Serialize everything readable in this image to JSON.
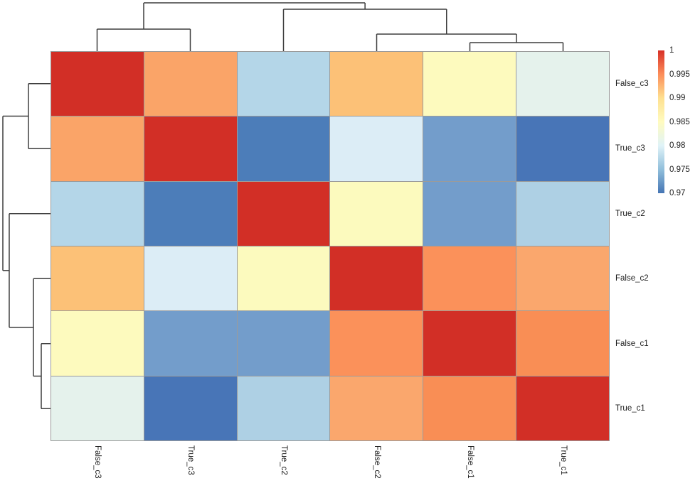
{
  "figure": {
    "kind": "clustered correlation heatmap",
    "background": "#ffffff"
  },
  "chart_data": {
    "type": "heatmap",
    "title": "",
    "rows": [
      "False_c3",
      "True_c3",
      "True_c2",
      "False_c2",
      "False_c1",
      "True_c1"
    ],
    "columns": [
      "False_c3",
      "True_c3",
      "True_c2",
      "False_c2",
      "False_c1",
      "True_c1"
    ],
    "values": [
      [
        1.0,
        0.993,
        0.977,
        0.992,
        0.985,
        0.982
      ],
      [
        0.993,
        1.0,
        0.971,
        0.98,
        0.973,
        0.97
      ],
      [
        0.977,
        0.971,
        1.0,
        0.985,
        0.973,
        0.977
      ],
      [
        0.992,
        0.98,
        0.985,
        1.0,
        0.995,
        0.993
      ],
      [
        0.985,
        0.973,
        0.973,
        0.995,
        1.0,
        0.995
      ],
      [
        0.982,
        0.97,
        0.977,
        0.993,
        0.995,
        1.0
      ]
    ],
    "cell_colors": [
      [
        "#d22f26",
        "#faa468",
        "#b4d6e8",
        "#fcc177",
        "#fdfabe",
        "#e5f2ec"
      ],
      [
        "#faa468",
        "#d22f26",
        "#4c7db9",
        "#dcedf6",
        "#739dcb",
        "#4875b7"
      ],
      [
        "#b4d6e8",
        "#4c7db9",
        "#d22f26",
        "#fcfabe",
        "#739dcb",
        "#aed0e4"
      ],
      [
        "#fcc177",
        "#dcedf6",
        "#fcfabe",
        "#d22f26",
        "#fb915a",
        "#faa76d"
      ],
      [
        "#fdfabe",
        "#739dcb",
        "#739dcb",
        "#fb915a",
        "#d22f26",
        "#f98e55"
      ],
      [
        "#e5f2ec",
        "#4875b7",
        "#aed0e4",
        "#faa76d",
        "#f98e55",
        "#d22f26"
      ]
    ],
    "grid_line_color": "#9b9b9b",
    "dendrogram_color": "#3d3d3d",
    "col_dendrogram": {
      "orientation": "top",
      "merges": [
        {
          "a": "L0",
          "b": "L1",
          "h": 0.456
        },
        {
          "a": "L4",
          "b": "L5",
          "h": 0.176
        },
        {
          "a": "L3",
          "b": "N1",
          "h": 0.353
        },
        {
          "a": "L2",
          "b": "N2",
          "h": 0.868
        },
        {
          "a": "N0",
          "b": "N3",
          "h": 1.0
        }
      ]
    },
    "row_dendrogram": {
      "orientation": "left",
      "merges": [
        {
          "a": "L0",
          "b": "L1",
          "h": 0.463
        },
        {
          "a": "L4",
          "b": "L5",
          "h": 0.194
        },
        {
          "a": "L3",
          "b": "N1",
          "h": 0.358
        },
        {
          "a": "L2",
          "b": "N2",
          "h": 0.866
        },
        {
          "a": "N0",
          "b": "N3",
          "h": 1.0
        }
      ]
    },
    "legend": {
      "position": "right",
      "tick_labels": [
        "1",
        "0.995",
        "0.99",
        "0.985",
        "0.98",
        "0.975",
        "0.97"
      ],
      "ticks": [
        1,
        0.995,
        0.99,
        0.985,
        0.98,
        0.975,
        0.97
      ],
      "range": [
        0.97,
        1
      ],
      "colormap": "RdYlBu reversed (blue=low, red=high)",
      "gradient_stops_top_to_bottom": [
        "#d73027",
        "#fc8d59",
        "#fee090",
        "#fffbbf",
        "#e0f3f8",
        "#91bfdb",
        "#4575b4"
      ]
    }
  }
}
